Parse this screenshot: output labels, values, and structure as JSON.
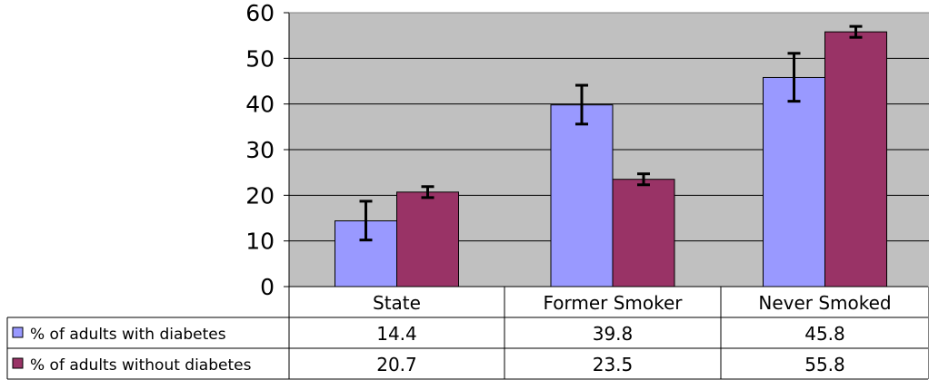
{
  "chart_data": {
    "type": "bar",
    "categories": [
      "State",
      "Former Smoker",
      "Never Smoked"
    ],
    "series": [
      {
        "name": "% of adults with diabetes",
        "values": [
          14.4,
          39.8,
          45.8
        ],
        "error_low": [
          10.2,
          35.6,
          40.6
        ],
        "error_high": [
          18.7,
          44.1,
          51.1
        ],
        "color": "#9999ff",
        "labels": [
          "14.4",
          "39.8",
          "45.8"
        ]
      },
      {
        "name": "% of adults without diabetes",
        "values": [
          20.7,
          23.5,
          55.8
        ],
        "error_low": [
          19.5,
          22.3,
          54.6
        ],
        "error_high": [
          21.9,
          24.7,
          57.0
        ],
        "color": "#993366",
        "labels": [
          "20.7",
          "23.5",
          "55.8"
        ]
      }
    ],
    "ylim": [
      0,
      60
    ],
    "yticks": [
      "0",
      "10",
      "20",
      "30",
      "40",
      "50",
      "60"
    ],
    "plot_background": "#c0c0c0",
    "grid": true,
    "legend": "data-table"
  }
}
